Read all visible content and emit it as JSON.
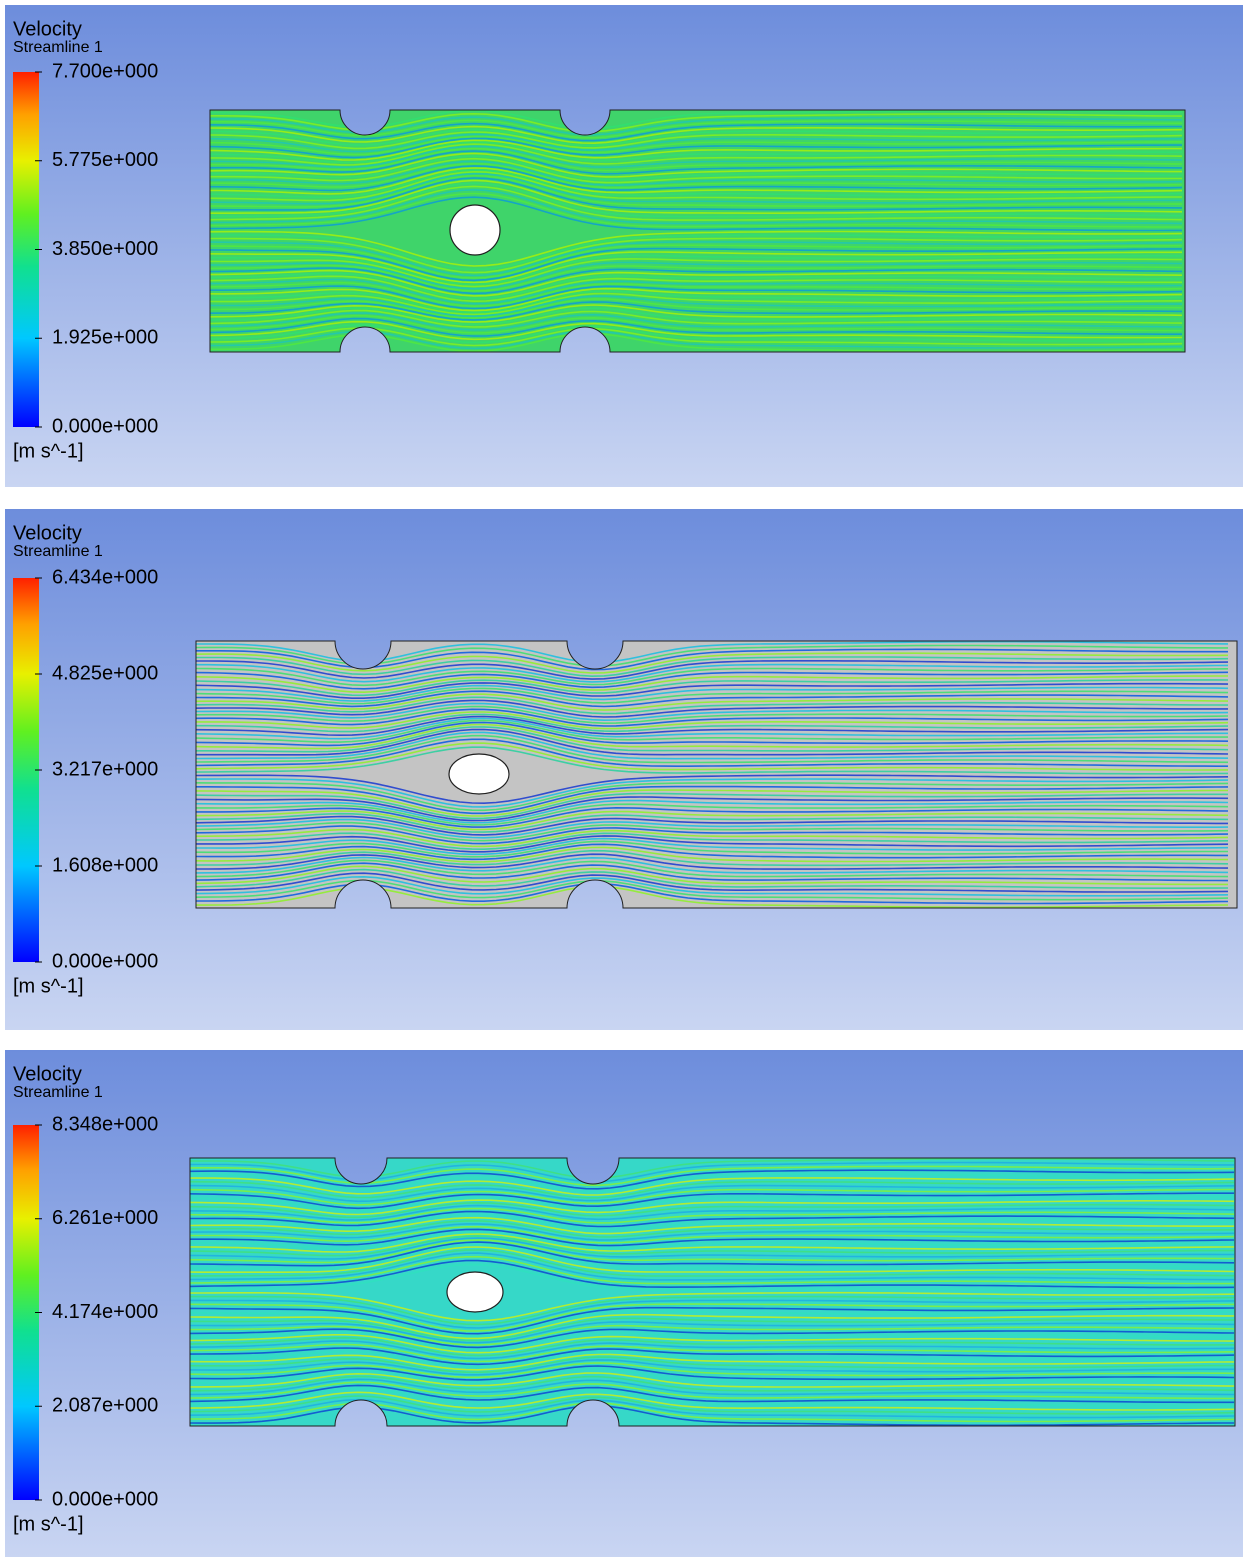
{
  "panels": [
    {
      "title": "Velocity",
      "subtitle": "Streamline 1",
      "legend_labels": [
        "7.700e+000",
        "5.775e+000",
        "3.850e+000",
        "1.925e+000",
        "0.000e+000"
      ],
      "unit": "[m s^-1]"
    },
    {
      "title": "Velocity",
      "subtitle": "Streamline 1",
      "legend_labels": [
        "6.434e+000",
        "4.825e+000",
        "3.217e+000",
        "1.608e+000",
        "0.000e+000"
      ],
      "unit": "[m s^-1]"
    },
    {
      "title": "Velocity",
      "subtitle": "Streamline 1",
      "legend_labels": [
        "8.348e+000",
        "6.261e+000",
        "4.174e+000",
        "2.087e+000",
        "0.000e+000"
      ],
      "unit": "[m s^-1]"
    }
  ]
}
